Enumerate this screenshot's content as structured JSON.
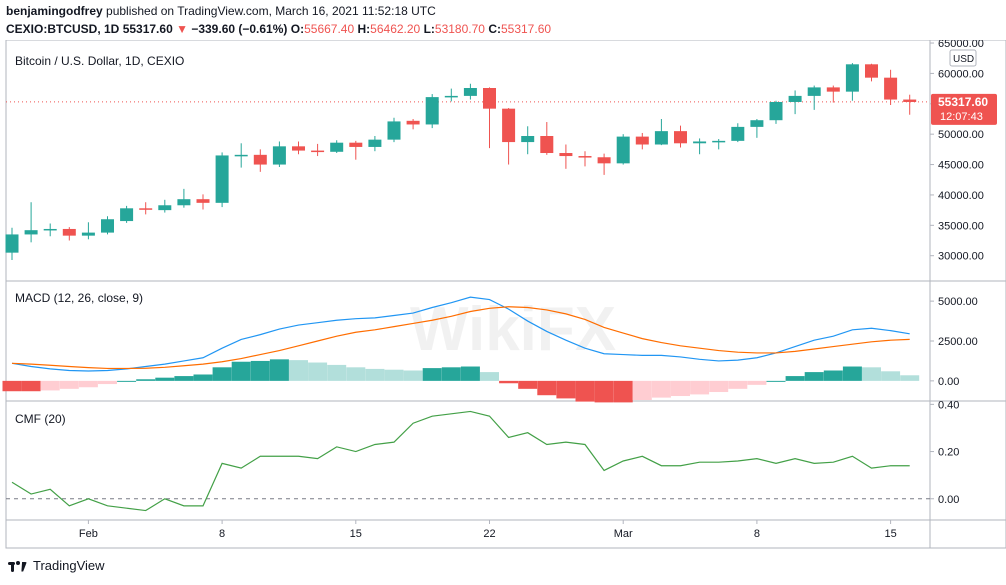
{
  "header": {
    "author": "benjamingodfrey",
    "published": "published on TradingView.com, March 16, 2021 11:52:18 UTC",
    "symbol": "CEXIO:BTCUSD, 1D",
    "last": "55317.60",
    "change": "−339.60 (−0.61%)",
    "o_label": "O:",
    "o": "55667.40",
    "h_label": "H:",
    "h": "56462.20",
    "l_label": "L:",
    "l": "53180.70",
    "c_label": "C:",
    "c": "55317.60"
  },
  "footer": {
    "brand": "TradingView"
  },
  "watermark": "WikiFX",
  "colors": {
    "up": "#26a69a",
    "down": "#ef5350",
    "macd": "#2196f3",
    "signal": "#ff6d00",
    "cmf": "#43a047",
    "hist_up": "#26a69a",
    "hist_up_fade": "#b2dfdb",
    "hist_down": "#ef5350",
    "hist_down_fade": "#ffcdd2"
  },
  "chart_data": [
    {
      "type": "candlestick",
      "title": "Bitcoin / U.S. Dollar, 1D, CEXIO",
      "currency": "USD",
      "last_price": "55317.60",
      "countdown": "12:07:43",
      "ylim": [
        26000,
        65500
      ],
      "y_ticks": [
        30000,
        35000,
        40000,
        45000,
        50000,
        55000,
        60000,
        65000
      ],
      "y_tick_labels": [
        "30000.00",
        "35000.00",
        "40000.00",
        "45000.00",
        "50000.00",
        "55000.00",
        "60000.00",
        "65000.00"
      ],
      "x_tick_labels": [
        {
          "index": 4,
          "label": "Feb"
        },
        {
          "index": 11,
          "label": "8"
        },
        {
          "index": 18,
          "label": "15"
        },
        {
          "index": 25,
          "label": "22"
        },
        {
          "index": 32,
          "label": "Mar"
        },
        {
          "index": 39,
          "label": "8"
        },
        {
          "index": 46,
          "label": "15"
        }
      ],
      "candles": [
        {
          "o": 30500,
          "h": 34600,
          "l": 29300,
          "c": 33500
        },
        {
          "o": 33500,
          "h": 38800,
          "l": 32200,
          "c": 34200
        },
        {
          "o": 34200,
          "h": 35300,
          "l": 33200,
          "c": 34400
        },
        {
          "o": 34400,
          "h": 34700,
          "l": 32500,
          "c": 33300
        },
        {
          "o": 33300,
          "h": 35500,
          "l": 32700,
          "c": 33800
        },
        {
          "o": 33800,
          "h": 36500,
          "l": 33500,
          "c": 36000
        },
        {
          "o": 35700,
          "h": 38200,
          "l": 35400,
          "c": 37800
        },
        {
          "o": 37800,
          "h": 38800,
          "l": 36800,
          "c": 37600
        },
        {
          "o": 37500,
          "h": 39200,
          "l": 37100,
          "c": 38300
        },
        {
          "o": 38300,
          "h": 41000,
          "l": 37900,
          "c": 39300
        },
        {
          "o": 39300,
          "h": 40100,
          "l": 37600,
          "c": 38700
        },
        {
          "o": 38700,
          "h": 47000,
          "l": 38000,
          "c": 46500
        },
        {
          "o": 46500,
          "h": 48500,
          "l": 44500,
          "c": 46600
        },
        {
          "o": 46600,
          "h": 47500,
          "l": 43800,
          "c": 45000
        },
        {
          "o": 45000,
          "h": 48800,
          "l": 44600,
          "c": 48000
        },
        {
          "o": 48000,
          "h": 48800,
          "l": 46700,
          "c": 47300
        },
        {
          "o": 47300,
          "h": 48400,
          "l": 46400,
          "c": 47100
        },
        {
          "o": 47100,
          "h": 49000,
          "l": 46900,
          "c": 48600
        },
        {
          "o": 48600,
          "h": 48900,
          "l": 45800,
          "c": 47900
        },
        {
          "o": 47900,
          "h": 49700,
          "l": 47200,
          "c": 49100
        },
        {
          "o": 49100,
          "h": 52700,
          "l": 48700,
          "c": 52100
        },
        {
          "o": 52200,
          "h": 52500,
          "l": 50800,
          "c": 51600
        },
        {
          "o": 51600,
          "h": 56600,
          "l": 51000,
          "c": 56100
        },
        {
          "o": 56100,
          "h": 57500,
          "l": 55400,
          "c": 56300
        },
        {
          "o": 56300,
          "h": 58300,
          "l": 55700,
          "c": 57600
        },
        {
          "o": 57600,
          "h": 57700,
          "l": 47700,
          "c": 54200
        },
        {
          "o": 54200,
          "h": 54300,
          "l": 45000,
          "c": 48700
        },
        {
          "o": 48700,
          "h": 51300,
          "l": 46700,
          "c": 49700
        },
        {
          "o": 49700,
          "h": 52000,
          "l": 46600,
          "c": 46900
        },
        {
          "o": 46900,
          "h": 48300,
          "l": 44300,
          "c": 46400
        },
        {
          "o": 46400,
          "h": 47200,
          "l": 44700,
          "c": 46200
        },
        {
          "o": 46200,
          "h": 46800,
          "l": 43300,
          "c": 45200
        },
        {
          "o": 45200,
          "h": 50000,
          "l": 45000,
          "c": 49600
        },
        {
          "o": 49600,
          "h": 50200,
          "l": 47500,
          "c": 48300
        },
        {
          "o": 48300,
          "h": 52500,
          "l": 48200,
          "c": 50500
        },
        {
          "o": 50500,
          "h": 51400,
          "l": 47800,
          "c": 48500
        },
        {
          "o": 48500,
          "h": 49300,
          "l": 46700,
          "c": 48800
        },
        {
          "o": 48800,
          "h": 49200,
          "l": 47500,
          "c": 48900
        },
        {
          "o": 48900,
          "h": 51800,
          "l": 48700,
          "c": 51200
        },
        {
          "o": 51200,
          "h": 52500,
          "l": 49400,
          "c": 52300
        },
        {
          "o": 52300,
          "h": 55500,
          "l": 51700,
          "c": 55300
        },
        {
          "o": 55300,
          "h": 57200,
          "l": 53300,
          "c": 56300
        },
        {
          "o": 56300,
          "h": 58000,
          "l": 54000,
          "c": 57700
        },
        {
          "o": 57700,
          "h": 58000,
          "l": 55200,
          "c": 57000
        },
        {
          "o": 57000,
          "h": 61700,
          "l": 55500,
          "c": 61500
        },
        {
          "o": 61500,
          "h": 61600,
          "l": 58700,
          "c": 59300
        },
        {
          "o": 59300,
          "h": 60600,
          "l": 54800,
          "c": 55700
        },
        {
          "o": 55700,
          "h": 56500,
          "l": 53200,
          "c": 55300
        }
      ]
    },
    {
      "type": "line",
      "title": "MACD (12, 26, close, 9)",
      "ylim": [
        -1200,
        6200
      ],
      "y_tick_labels": [
        "0.00",
        "2500.00",
        "5000.00"
      ],
      "y_ticks": [
        0,
        2500,
        5000
      ],
      "series": [
        {
          "name": "MACD",
          "values": [
            1100,
            900,
            750,
            650,
            620,
            650,
            750,
            900,
            1050,
            1250,
            1450,
            2050,
            2600,
            2900,
            3250,
            3500,
            3650,
            3800,
            3900,
            3950,
            4100,
            4250,
            4600,
            4900,
            5250,
            5100,
            4500,
            3750,
            3100,
            2550,
            2050,
            1700,
            1650,
            1600,
            1600,
            1500,
            1350,
            1250,
            1300,
            1450,
            1750,
            2150,
            2550,
            2800,
            3200,
            3300,
            3150,
            2950
          ]
        },
        {
          "name": "Signal",
          "values": [
            1100,
            1050,
            980,
            900,
            830,
            780,
            780,
            790,
            850,
            950,
            1050,
            1200,
            1400,
            1650,
            1900,
            2200,
            2500,
            2800,
            3050,
            3200,
            3400,
            3600,
            3800,
            4050,
            4350,
            4550,
            4650,
            4600,
            4450,
            4200,
            3850,
            3350,
            3000,
            2650,
            2400,
            2200,
            2050,
            1900,
            1800,
            1750,
            1750,
            1850,
            2000,
            2150,
            2300,
            2450,
            2550,
            2600
          ]
        }
      ],
      "histogram": [
        -650,
        -650,
        -600,
        -500,
        -400,
        -200,
        0,
        100,
        200,
        300,
        400,
        850,
        1200,
        1250,
        1350,
        1300,
        1150,
        1000,
        850,
        750,
        700,
        650,
        800,
        850,
        900,
        550,
        -150,
        -500,
        -900,
        -1100,
        -1300,
        -1350,
        -1350,
        -1200,
        -1050,
        -950,
        -850,
        -700,
        -500,
        -250,
        0,
        300,
        550,
        650,
        900,
        850,
        600,
        350
      ]
    },
    {
      "type": "line",
      "title": "CMF (20)",
      "ylim": [
        -0.09,
        0.41
      ],
      "y_tick_labels": [
        "0.00",
        "0.20",
        "0.40"
      ],
      "y_ticks": [
        0,
        0.2,
        0.4
      ],
      "series": [
        {
          "name": "CMF",
          "values": [
            0.07,
            0.02,
            0.04,
            -0.03,
            0.0,
            -0.03,
            -0.04,
            -0.05,
            0.0,
            -0.03,
            -0.03,
            0.15,
            0.13,
            0.18,
            0.18,
            0.18,
            0.17,
            0.22,
            0.2,
            0.23,
            0.24,
            0.32,
            0.35,
            0.36,
            0.37,
            0.35,
            0.26,
            0.28,
            0.23,
            0.24,
            0.23,
            0.12,
            0.16,
            0.18,
            0.14,
            0.14,
            0.155,
            0.155,
            0.16,
            0.17,
            0.15,
            0.17,
            0.15,
            0.155,
            0.18,
            0.13,
            0.14,
            0.14
          ]
        }
      ]
    }
  ]
}
